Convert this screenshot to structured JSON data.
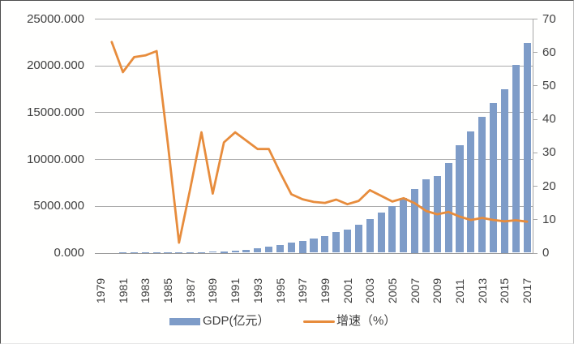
{
  "chart_data": {
    "type": "bar",
    "subtype": "combo-bar-line",
    "title": "",
    "categories": [
      1979,
      1980,
      1981,
      1982,
      1983,
      1984,
      1985,
      1986,
      1987,
      1988,
      1989,
      1990,
      1991,
      1992,
      1993,
      1994,
      1995,
      1996,
      1997,
      1998,
      1999,
      2000,
      2001,
      2002,
      2003,
      2004,
      2005,
      2006,
      2007,
      2008,
      2009,
      2010,
      2011,
      2012,
      2013,
      2014,
      2015,
      2016,
      2017
    ],
    "series": [
      {
        "name": "GDP(亿元）",
        "type": "bar",
        "axis": "left",
        "color": "#7E9CC8",
        "values": [
          1.96,
          2.7,
          4.95,
          8.23,
          13.12,
          23.41,
          39.02,
          41.6,
          55.85,
          87.0,
          115.69,
          171.67,
          236.66,
          317.32,
          453.14,
          634.67,
          842.79,
          1048.36,
          1297.42,
          1534.83,
          1804.02,
          2187.45,
          2482.49,
          2969.52,
          3585.72,
          4282.14,
          4950.91,
          5813.56,
          6801.57,
          7806.54,
          8201.23,
          9581.51,
          11502.06,
          12950.08,
          14500.23,
          16001.82,
          17502.86,
          20078.58,
          22438.39
        ]
      },
      {
        "name": "增速（%）",
        "type": "line",
        "axis": "right",
        "color": "#E78C3C",
        "values": [
          null,
          63,
          54,
          58.5,
          59,
          60.3,
          32.7,
          3,
          19.2,
          36,
          17.7,
          33,
          36,
          33.5,
          31,
          31,
          24,
          17.5,
          16,
          15.2,
          14.9,
          15.9,
          14.5,
          15.5,
          18.7,
          17,
          15.3,
          16.3,
          14.8,
          12.5,
          11.5,
          12.2,
          10.8,
          9.8,
          10.4,
          9.8,
          9.4,
          9.7,
          9.3
        ]
      }
    ],
    "left_axis": {
      "min": 0,
      "max": 25000,
      "tick_labels": [
        "0.000",
        "5000.000",
        "10000.000",
        "15000.000",
        "20000.000",
        "25000.000"
      ]
    },
    "right_axis": {
      "min": 0,
      "max": 70,
      "tick_labels": [
        "0",
        "10",
        "20",
        "30",
        "40",
        "50",
        "60",
        "70"
      ]
    },
    "x_tick_labels": [
      "1979",
      "1981",
      "1983",
      "1985",
      "1987",
      "1989",
      "1991",
      "1993",
      "1995",
      "1997",
      "1999",
      "2001",
      "2003",
      "2005",
      "2007",
      "2009",
      "2011",
      "2013",
      "2015",
      "2017"
    ],
    "grid": true,
    "legend_position": "bottom"
  },
  "legend": {
    "gdp_label": "GDP(亿元）",
    "growth_label": "增速（%）"
  },
  "colors": {
    "bar": "#7E9CC8",
    "line": "#E78C3C",
    "gridline": "#ababab",
    "axis": "#a6a6a6",
    "text": "#3f3f3f",
    "background": "#ffffff"
  }
}
